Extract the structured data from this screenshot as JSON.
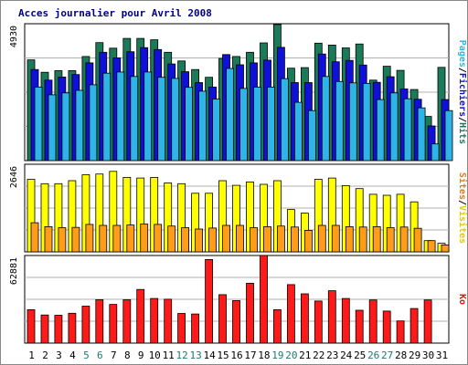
{
  "title": "Acces journalier pour Avril 2008",
  "chart_data": [
    {
      "type": "bar",
      "categories": [
        "1",
        "2",
        "3",
        "4",
        "5",
        "6",
        "7",
        "8",
        "9",
        "10",
        "11",
        "12",
        "13",
        "14",
        "15",
        "16",
        "17",
        "18",
        "19",
        "20",
        "21",
        "22",
        "23",
        "24",
        "25",
        "26",
        "27",
        "28",
        "29",
        "30",
        "31"
      ],
      "weekend_days": [
        "5",
        "6",
        "12",
        "13",
        "19",
        "20",
        "26",
        "27"
      ],
      "ymax_label": "4930",
      "ymax": 4930,
      "right_label": {
        "parts": [
          "Pages",
          "/",
          "Fichiers",
          "/",
          "Hits"
        ],
        "colors": [
          "#2eb4e6",
          "#000000",
          "#1010d8",
          "#000000",
          "#1b7a58"
        ]
      },
      "series": [
        {
          "name": "Hits",
          "color": "#1b7a58",
          "values": [
            3630,
            3180,
            3240,
            3240,
            3750,
            4250,
            4050,
            4400,
            4400,
            4350,
            3900,
            3590,
            3280,
            3000,
            3680,
            3750,
            3900,
            4240,
            4900,
            3330,
            3350,
            4230,
            4160,
            4060,
            4200,
            2900,
            3400,
            3250,
            2560,
            1590,
            3360
          ]
        },
        {
          "name": "Fichiers",
          "color": "#1010d8",
          "values": [
            3280,
            2900,
            3010,
            3100,
            3520,
            3900,
            3700,
            3920,
            4070,
            4000,
            3480,
            3200,
            2810,
            2650,
            3820,
            3450,
            3520,
            3620,
            4080,
            2810,
            2810,
            3840,
            3560,
            3610,
            3440,
            2820,
            3020,
            2580,
            2210,
            1250,
            2200
          ]
        },
        {
          "name": "Pages",
          "color": "#2eb4e6",
          "values": [
            2650,
            2370,
            2440,
            2530,
            2730,
            3150,
            3190,
            3030,
            3190,
            3000,
            2960,
            2640,
            2500,
            2220,
            3320,
            2600,
            2650,
            2650,
            2950,
            2100,
            1800,
            3030,
            2850,
            2800,
            2780,
            2200,
            2440,
            2230,
            1900,
            600,
            1800
          ]
        }
      ]
    },
    {
      "type": "bar",
      "ymax_label": "2646",
      "ymax": 2646,
      "right_label": {
        "parts": [
          "Sites",
          "/",
          "Visites"
        ],
        "colors": [
          "#e07818",
          "#000000",
          "#e6c800"
        ]
      },
      "series": [
        {
          "name": "Visites",
          "color": "#ffff00",
          "values": [
            2190,
            2060,
            2060,
            2150,
            2330,
            2350,
            2430,
            2250,
            2230,
            2250,
            2080,
            2060,
            1770,
            1770,
            2150,
            2010,
            2110,
            2040,
            2150,
            1280,
            1170,
            2190,
            2230,
            2000,
            1910,
            1740,
            1710,
            1740,
            1510,
            340,
            260
          ]
        },
        {
          "name": "Sites",
          "color": "#ff9d1a",
          "values": [
            880,
            760,
            730,
            740,
            830,
            800,
            800,
            810,
            840,
            830,
            780,
            730,
            690,
            720,
            800,
            800,
            730,
            760,
            780,
            750,
            650,
            800,
            800,
            760,
            750,
            760,
            730,
            750,
            710,
            340,
            210
          ]
        }
      ]
    },
    {
      "type": "bar",
      "ymax_label": "62881",
      "ymax": 62881,
      "right_label": {
        "parts": [
          "Ko"
        ],
        "colors": [
          "#e01010"
        ]
      },
      "series": [
        {
          "name": "Ko",
          "color": "#ff1a1a",
          "values": [
            24000,
            20200,
            20000,
            21400,
            26500,
            31200,
            27800,
            31100,
            38500,
            32000,
            31500,
            21300,
            20900,
            60000,
            34800,
            30500,
            43000,
            63000,
            24000,
            42000,
            35400,
            30200,
            37600,
            32000,
            23600,
            31000,
            23000,
            15900,
            24800,
            31000,
            0
          ]
        }
      ]
    }
  ]
}
